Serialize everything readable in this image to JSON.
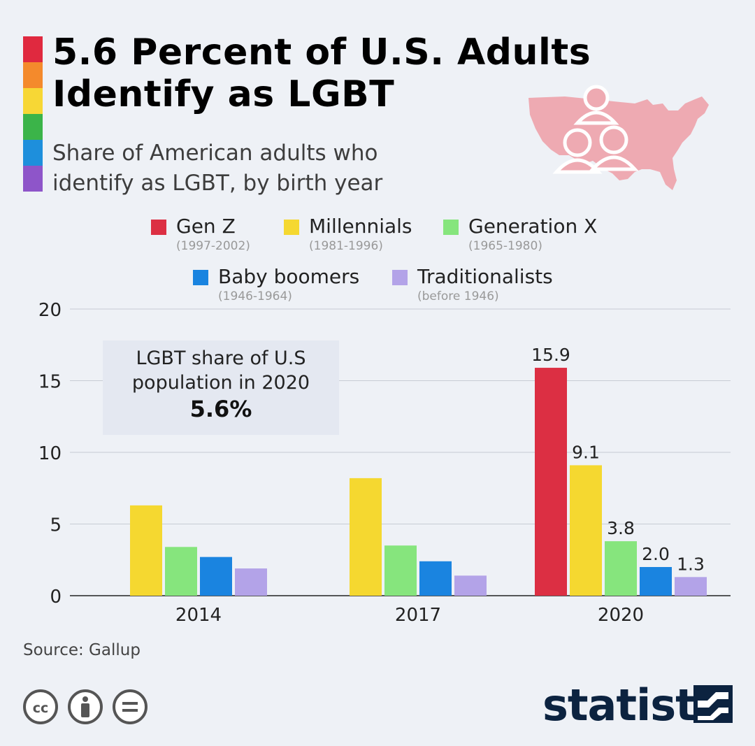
{
  "header": {
    "title_line1": "5.6 Percent of U.S. Adults",
    "title_line2": "Identify as LGBT",
    "subtitle_line1": "Share of American adults who",
    "subtitle_line2": "identify as LGBT, by birth year",
    "rainbow_colors": [
      "#e0293f",
      "#f48a2c",
      "#f7d735",
      "#3bb449",
      "#1e8fdc",
      "#8e55c9"
    ]
  },
  "legend": [
    {
      "name": "Gen Z",
      "years": "(1997-2002)",
      "color": "#dc2f43"
    },
    {
      "name": "Millennials",
      "years": "(1981-1996)",
      "color": "#f5d830"
    },
    {
      "name": "Generation X",
      "years": "(1965-1980)",
      "color": "#86e57d"
    },
    {
      "name": "Baby boomers",
      "years": "(1946-1964)",
      "color": "#1a84e0"
    },
    {
      "name": "Traditionalists",
      "years": "(before 1946)",
      "color": "#b3a3e8"
    }
  ],
  "callout": {
    "line1": "LGBT share of U.S",
    "line2": "population in 2020",
    "value": "5.6%"
  },
  "chart_data": {
    "type": "bar",
    "categories": [
      "2014",
      "2017",
      "2020"
    ],
    "series": [
      {
        "name": "Gen Z",
        "color": "#dc2f43",
        "values": [
          null,
          null,
          15.9
        ]
      },
      {
        "name": "Millennials",
        "color": "#f5d830",
        "values": [
          6.3,
          8.2,
          9.1
        ]
      },
      {
        "name": "Generation X",
        "color": "#86e57d",
        "values": [
          3.4,
          3.5,
          3.8
        ]
      },
      {
        "name": "Baby boomers",
        "color": "#1a84e0",
        "values": [
          2.7,
          2.4,
          2.0
        ]
      },
      {
        "name": "Traditionalists",
        "color": "#b3a3e8",
        "values": [
          1.9,
          1.4,
          1.3
        ]
      }
    ],
    "data_labels": {
      "2020": [
        "15.9",
        "9.1",
        "3.8",
        "2.0",
        "1.3"
      ]
    },
    "yticks": [
      "0",
      "5",
      "10",
      "15",
      "20"
    ],
    "ylim": [
      0,
      20
    ],
    "grid": true
  },
  "footer": {
    "source": "Source: Gallup",
    "brand": "statista"
  }
}
